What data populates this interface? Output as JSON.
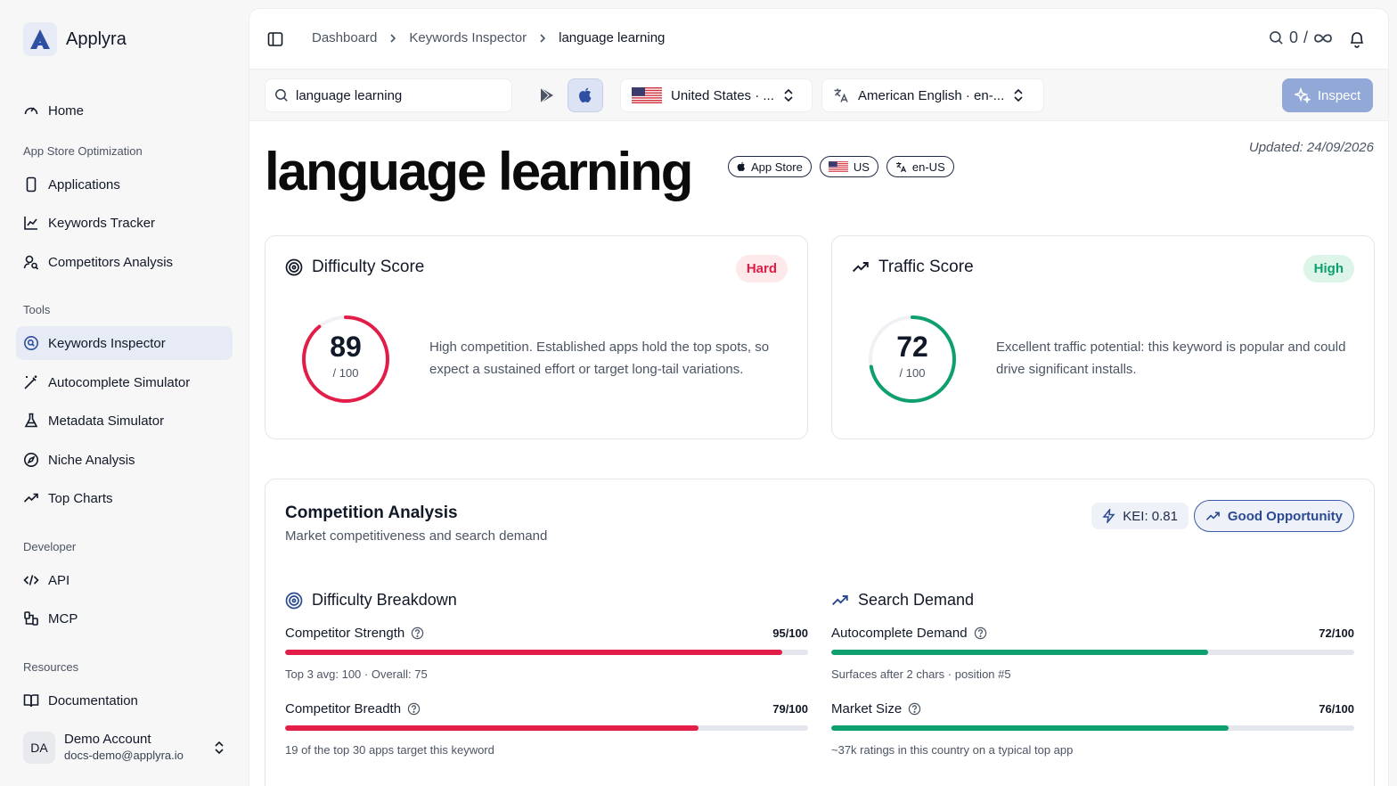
{
  "brand": {
    "name": "Applyra"
  },
  "sidebar": {
    "home": "Home",
    "sections": [
      {
        "title": "App Store Optimization",
        "items": [
          "Applications",
          "Keywords Tracker",
          "Competitors Analysis"
        ]
      },
      {
        "title": "Tools",
        "items": [
          "Keywords Inspector",
          "Autocomplete Simulator",
          "Metadata Simulator",
          "Niche Analysis",
          "Top Charts"
        ]
      },
      {
        "title": "Developer",
        "items": [
          "API",
          "MCP"
        ]
      },
      {
        "title": "Resources",
        "items": [
          "Documentation"
        ]
      }
    ],
    "active_item": "Keywords Inspector",
    "account": {
      "initials": "DA",
      "name": "Demo Account",
      "email": "docs-demo@applyra.io"
    }
  },
  "header": {
    "breadcrumb": [
      "Dashboard",
      "Keywords Inspector",
      "language learning"
    ],
    "credits_used": "0",
    "credits_sep": "/"
  },
  "toolbar": {
    "search_value": "language learning",
    "country": "United States · ...",
    "language": "American English · en-...",
    "inspect_label": "Inspect"
  },
  "page": {
    "title": "language learning",
    "tags": [
      "App Store",
      "US",
      "en-US"
    ],
    "updated": "Updated: 24/09/2026"
  },
  "difficulty": {
    "title": "Difficulty Score",
    "badge": "Hard",
    "score": "89",
    "max": "/ 100",
    "score_fraction": 0.89,
    "description": "High competition. Established apps hold the top spots, so expect a sustained effort or target long-tail variations.",
    "color": "#e11d48"
  },
  "traffic": {
    "title": "Traffic Score",
    "badge": "High",
    "score": "72",
    "max": "/ 100",
    "score_fraction": 0.72,
    "description": "Excellent traffic potential: this keyword is popular and could drive significant installs.",
    "color": "#0e9f6e"
  },
  "competition": {
    "title": "Competition Analysis",
    "subtitle": "Market competitiveness and search demand",
    "kei": "KEI: 0.81",
    "opportunity": "Good Opportunity",
    "breakdown": {
      "title": "Difficulty Breakdown",
      "metrics": [
        {
          "label": "Competitor Strength",
          "value": "95/100",
          "fraction": 0.95,
          "note": "Top 3 avg: 100 · Overall: 75"
        },
        {
          "label": "Competitor Breadth",
          "value": "79/100",
          "fraction": 0.79,
          "note": "19 of the top 30 apps target this keyword"
        }
      ]
    },
    "demand": {
      "title": "Search Demand",
      "metrics": [
        {
          "label": "Autocomplete Demand",
          "value": "72/100",
          "fraction": 0.72,
          "note": "Surfaces after 2 chars · position #5"
        },
        {
          "label": "Market Size",
          "value": "76/100",
          "fraction": 0.76,
          "note": "~37k ratings in this country on a typical top app"
        }
      ]
    }
  }
}
